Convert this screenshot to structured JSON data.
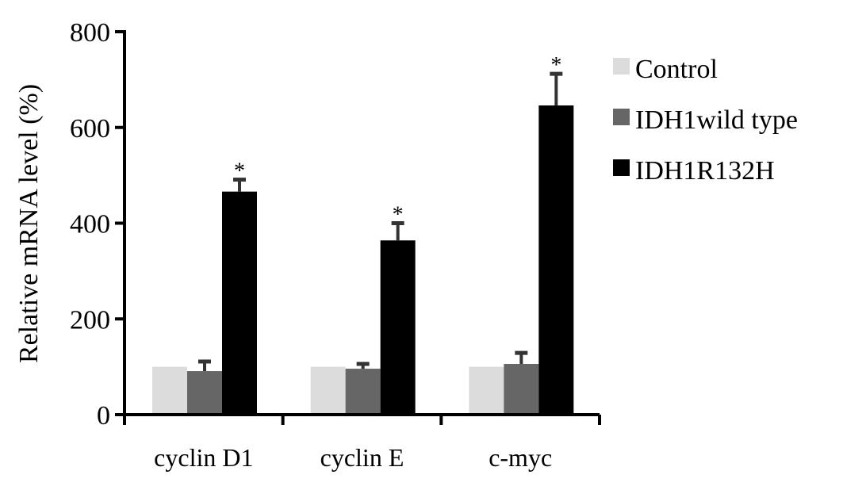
{
  "chart_data": {
    "type": "bar",
    "title": "",
    "xlabel": "",
    "ylabel": "Relative mRNA level (%)",
    "ylim": [
      0,
      800
    ],
    "yticks": [
      0,
      200,
      400,
      600,
      800
    ],
    "categories": [
      "cyclin D1",
      "cyclin E",
      "c-myc"
    ],
    "series": [
      {
        "name": "Control",
        "color": "#dcdcdc",
        "values": [
          100,
          100,
          100
        ],
        "errors": [
          0,
          0,
          0
        ],
        "significance": [
          "",
          "",
          ""
        ]
      },
      {
        "name": "IDH1wild type",
        "color": "#666666",
        "values": [
          91,
          96,
          106
        ],
        "errors": [
          20,
          10,
          23
        ],
        "significance": [
          "",
          "",
          ""
        ]
      },
      {
        "name": "IDH1R132H",
        "color": "#000000",
        "values": [
          466,
          364,
          646
        ],
        "errors": [
          25,
          36,
          66
        ],
        "significance": [
          "*",
          "*",
          "*"
        ]
      }
    ],
    "grid": false,
    "legend_position": "right"
  }
}
